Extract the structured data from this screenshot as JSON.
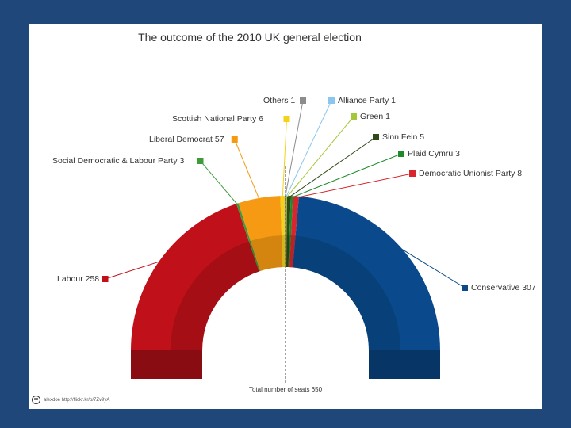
{
  "chart_data": {
    "type": "pie",
    "subtype": "semicircle-parliament",
    "title": "The outcome  of the 2010 UK general election",
    "total_label": "Total number of seats 650",
    "total": 650,
    "series": [
      {
        "name": "Labour",
        "value": 258,
        "label": "Labour 258",
        "color": "#c0101a"
      },
      {
        "name": "Social Democratic & Labour Party",
        "value": 3,
        "label": "Social Democratic & Labour Party 3",
        "color": "#3f9a3a"
      },
      {
        "name": "Liberal Democrat",
        "value": 57,
        "label": "Liberal Democrat 57",
        "color": "#f59a12"
      },
      {
        "name": "Scottish National Party",
        "value": 6,
        "label": "Scottish National Party  6",
        "color": "#f5d21a"
      },
      {
        "name": "Others",
        "value": 1,
        "label": "Others 1",
        "color": "#8c8c8c"
      },
      {
        "name": "Alliance Party",
        "value": 1,
        "label": "Alliance Party 1",
        "color": "#8cc6ee"
      },
      {
        "name": "Green",
        "value": 1,
        "label": "Green 1",
        "color": "#a5c83a"
      },
      {
        "name": "Sinn Fein",
        "value": 5,
        "label": "Sinn Fein 5",
        "color": "#2f4a16"
      },
      {
        "name": "Plaid Cymru",
        "value": 3,
        "label": "Plaid Cymru 3",
        "color": "#1f8a2a"
      },
      {
        "name": "Democratic Unionist Party",
        "value": 8,
        "label": "Democratic Unionist Party 8",
        "color": "#d8262c"
      },
      {
        "name": "Conservative",
        "value": 307,
        "label": "Conservative 307",
        "color": "#0a4a8c"
      }
    ]
  },
  "credit": {
    "text": "alexdoe http://flickr.kr/p/7Zv9yA"
  }
}
